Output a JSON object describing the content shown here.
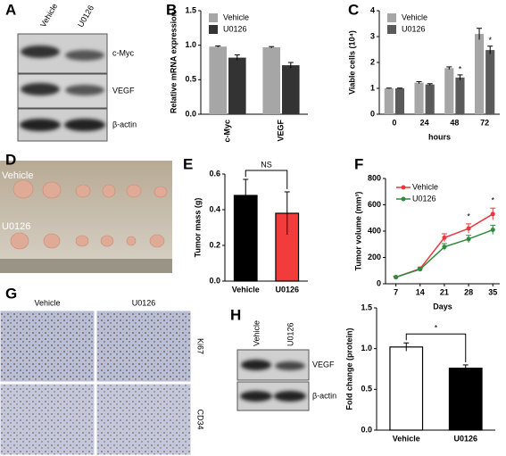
{
  "panels": {
    "letters": [
      "A",
      "B",
      "C",
      "D",
      "E",
      "F",
      "G",
      "H"
    ],
    "a": {
      "lanes": [
        "Vehicle",
        "U0126"
      ],
      "bands": [
        "c-Myc",
        "VEGF",
        "β-actin"
      ]
    },
    "d": {
      "rows": [
        "Vehicle",
        "U0126"
      ]
    },
    "g": {
      "columns": [
        "Vehicle",
        "U0126"
      ],
      "rows": [
        "Ki67",
        "CD34"
      ]
    },
    "h": {
      "lanes": [
        "Vehicle",
        "U0126"
      ],
      "bands": [
        "VEGF",
        "β-actin"
      ]
    }
  },
  "chart_data": [
    {
      "type": "bar",
      "ylabel": "Relative mRNA expression",
      "categories": [
        "c-Myc",
        "VEGF"
      ],
      "series": [
        {
          "name": "Vehicle",
          "color": "#a6a6a6",
          "values": [
            0.98,
            0.97
          ],
          "errors": [
            0.01,
            0.01
          ]
        },
        {
          "name": "U0126",
          "color": "#333333",
          "values": [
            0.82,
            0.71
          ],
          "errors": [
            0.04,
            0.04
          ]
        }
      ],
      "ylim": [
        0,
        1.5
      ],
      "yticks": [
        {
          "value": 0,
          "label": "0.0"
        },
        0.5,
        {
          "value": 1,
          "label": "1.0"
        },
        1.5
      ]
    },
    {
      "type": "bar",
      "ylabel": "Viable cells (10⁴)",
      "xlabel": "hours",
      "categories": [
        "0",
        "24",
        "48",
        "72"
      ],
      "series": [
        {
          "name": "Vehicle",
          "color": "#a6a6a6",
          "values": [
            1.0,
            1.22,
            1.78,
            3.1
          ],
          "errors": [
            0.01,
            0.04,
            0.05,
            0.22
          ]
        },
        {
          "name": "U0126",
          "color": "#5a5a5a",
          "values": [
            1.0,
            1.15,
            1.42,
            2.48
          ],
          "errors": [
            0.01,
            0.03,
            0.1,
            0.15
          ]
        }
      ],
      "ylim": [
        0,
        4
      ],
      "yticks": [
        0,
        1,
        2,
        3,
        4
      ],
      "annotations": [
        "*",
        "*"
      ]
    },
    {
      "type": "bar",
      "ylabel": "Tumor mass (g)",
      "categories": [
        "Vehicle",
        "U0126"
      ],
      "values": [
        0.48,
        0.38
      ],
      "errors": [
        0.09,
        0.12
      ],
      "colors": [
        "#000000",
        "#f23c3c"
      ],
      "ylim": [
        0,
        0.6
      ],
      "yticks": [
        {
          "value": 0,
          "label": "0.0"
        },
        0.2,
        0.4,
        0.6
      ],
      "annotations": [
        "NS"
      ]
    },
    {
      "type": "line",
      "ylabel": "Tumor volume (mm³)",
      "xlabel": "Days",
      "x": [
        7,
        14,
        21,
        28,
        35
      ],
      "series": [
        {
          "name": "Vehicle",
          "color": "#e8383d",
          "values": [
            50,
            115,
            350,
            420,
            530
          ],
          "errors": [
            8,
            12,
            30,
            35,
            45
          ]
        },
        {
          "name": "U0126",
          "color": "#2e8b3e",
          "values": [
            50,
            110,
            280,
            340,
            410
          ],
          "errors": [
            8,
            10,
            25,
            28,
            35
          ]
        }
      ],
      "xlim": [
        4,
        37
      ],
      "xticks": [
        7,
        14,
        21,
        28,
        35
      ],
      "ylim": [
        0,
        800
      ],
      "yticks": [
        0,
        200,
        400,
        600,
        800
      ],
      "annotations": [
        "*",
        "*"
      ]
    },
    {
      "type": "bar",
      "ylabel": "Fold change (protein)",
      "categories": [
        "Vehicle",
        "U0126"
      ],
      "values": [
        1.02,
        0.76
      ],
      "errors": [
        0.05,
        0.04
      ],
      "colors": [
        "#ffffff",
        "#000000"
      ],
      "ylim": [
        0,
        1.5
      ],
      "yticks": [
        {
          "value": 0,
          "label": "0.0"
        },
        0.5,
        {
          "value": 1,
          "label": "1.0"
        },
        1.5
      ],
      "annotations": [
        "*"
      ]
    }
  ]
}
